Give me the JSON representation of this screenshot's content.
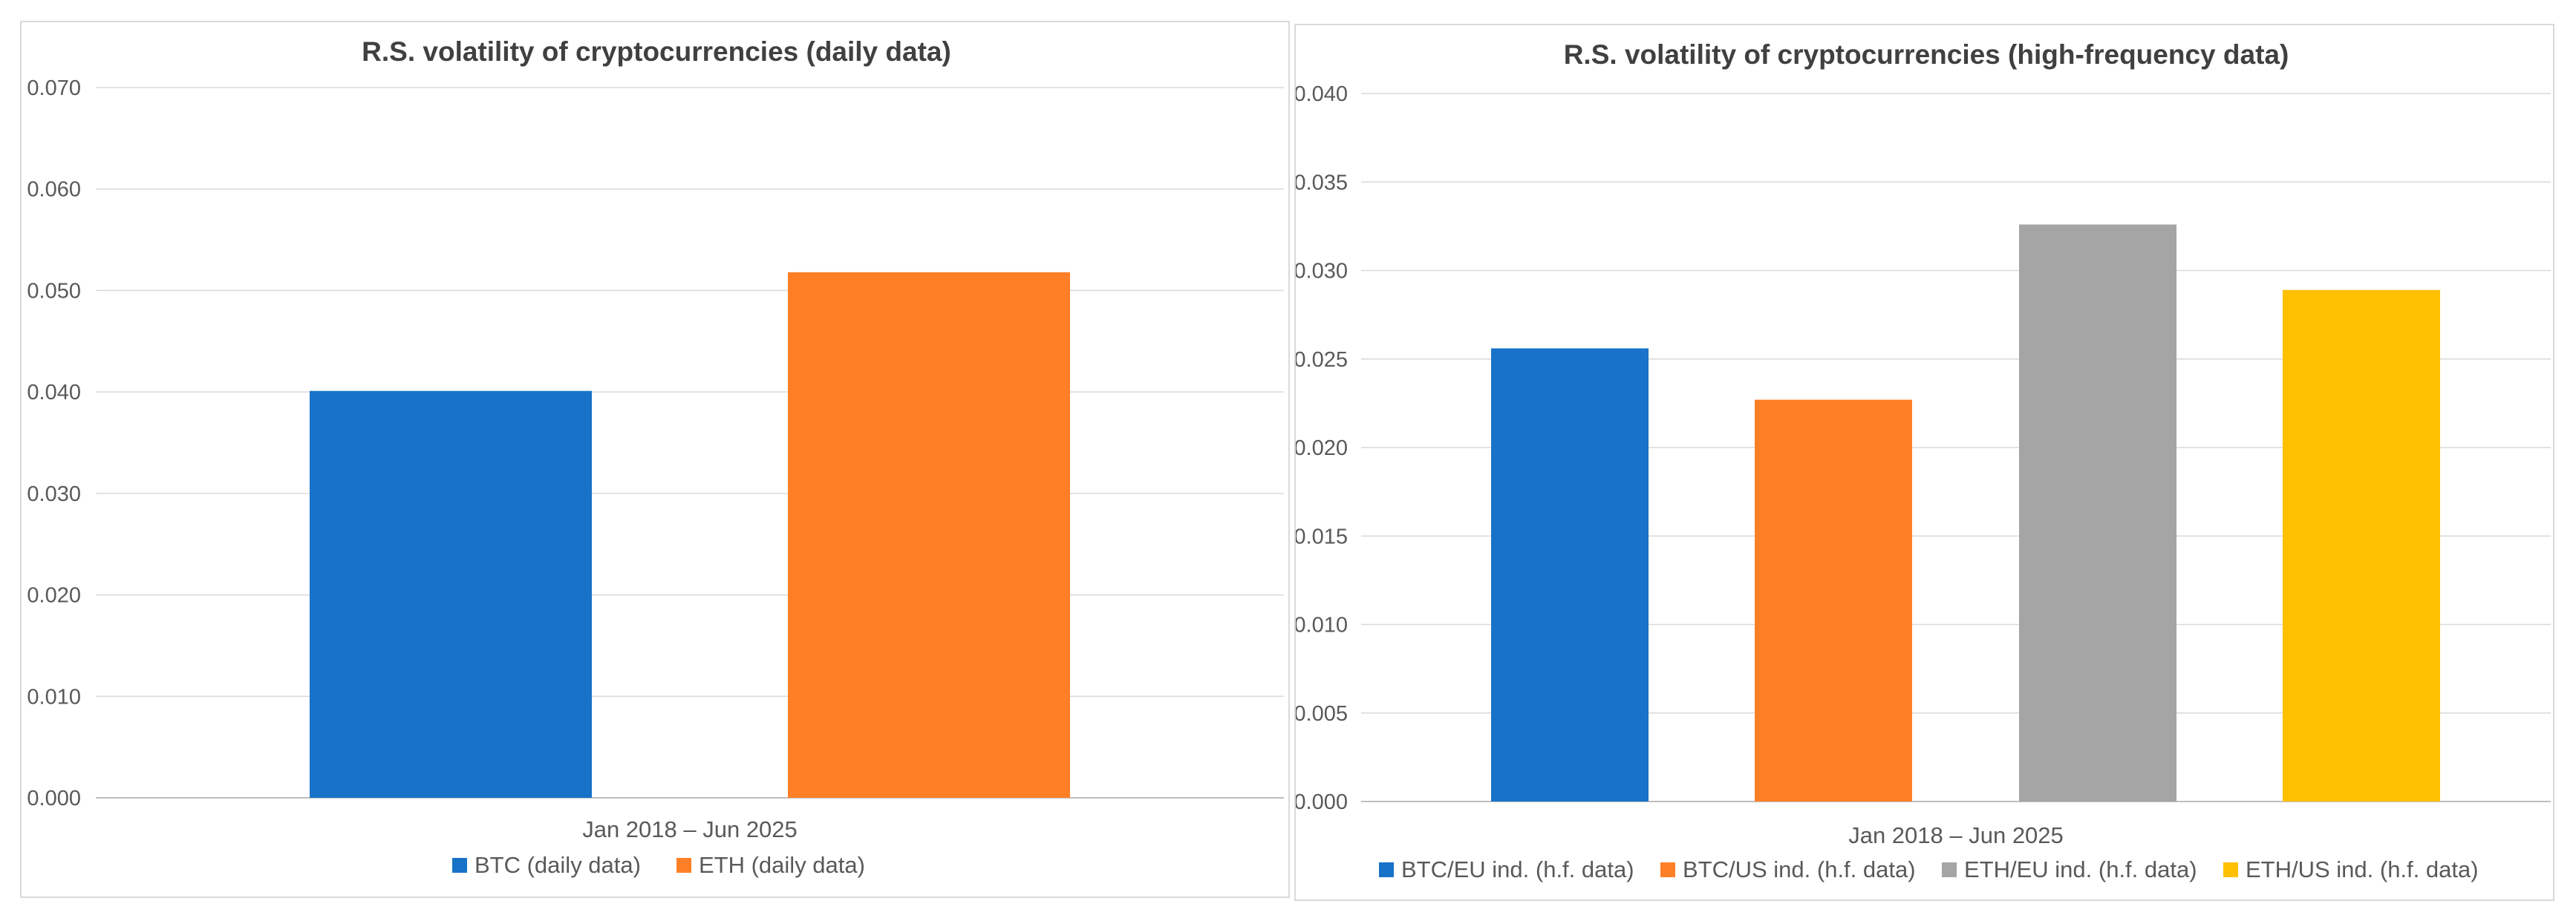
{
  "chart_data": [
    {
      "type": "bar",
      "title": "R.S. volatility of cryptocurrencies (daily data)",
      "categories": [
        "Jan 2018 – Jun 2025"
      ],
      "xlabel": "",
      "ylabel": "",
      "ylim": [
        0,
        0.07
      ],
      "yticks": [
        "0.000",
        "0.010",
        "0.020",
        "0.030",
        "0.040",
        "0.050",
        "0.060",
        "0.070"
      ],
      "grid": true,
      "legend_position": "bottom",
      "series": [
        {
          "name": "BTC (daily data)",
          "values": [
            0.0401
          ],
          "color": "#1772C8"
        },
        {
          "name": "ETH (daily data)",
          "values": [
            0.0518
          ],
          "color": "#FF7F27"
        }
      ]
    },
    {
      "type": "bar",
      "title": "R.S. volatility of cryptocurrencies (high-frequency data)",
      "categories": [
        "Jan 2018 – Jun 2025"
      ],
      "xlabel": "",
      "ylabel": "",
      "ylim": [
        0,
        0.04
      ],
      "yticks": [
        "0.000",
        "0.005",
        "0.010",
        "0.015",
        "0.020",
        "0.025",
        "0.030",
        "0.035",
        "0.040"
      ],
      "grid": true,
      "legend_position": "bottom",
      "series": [
        {
          "name": "BTC/EU ind. (h.f. data)",
          "values": [
            0.0256
          ],
          "color": "#1772C8"
        },
        {
          "name": "BTC/US ind. (h.f. data)",
          "values": [
            0.0227
          ],
          "color": "#FF7F27"
        },
        {
          "name": "ETH/EU ind. (h.f. data)",
          "values": [
            0.0326
          ],
          "color": "#A5A5A5"
        },
        {
          "name": "ETH/US ind. (h.f. data)",
          "values": [
            0.0289
          ],
          "color": "#FFC000"
        }
      ]
    }
  ]
}
